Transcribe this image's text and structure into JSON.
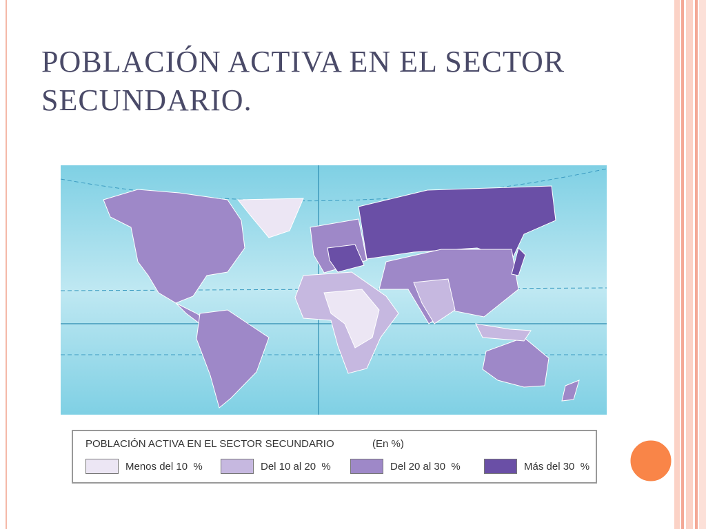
{
  "header": {
    "title": "POBLACIÓN ACTIVA EN EL SECTOR SECUNDARIO."
  },
  "legend": {
    "title": "POBLACIÓN ACTIVA EN EL SECTOR SECUNDARIO",
    "unit": "(En %)",
    "items": [
      {
        "label": "Menos del 10  %",
        "color": "#ece6f4"
      },
      {
        "label": "Del 10 al 20  %",
        "color": "#c6b8e0"
      },
      {
        "label": "Del 20 al 30  %",
        "color": "#9e88c8"
      },
      {
        "label": "Más del 30  %",
        "color": "#6a4fa6"
      }
    ]
  }
}
